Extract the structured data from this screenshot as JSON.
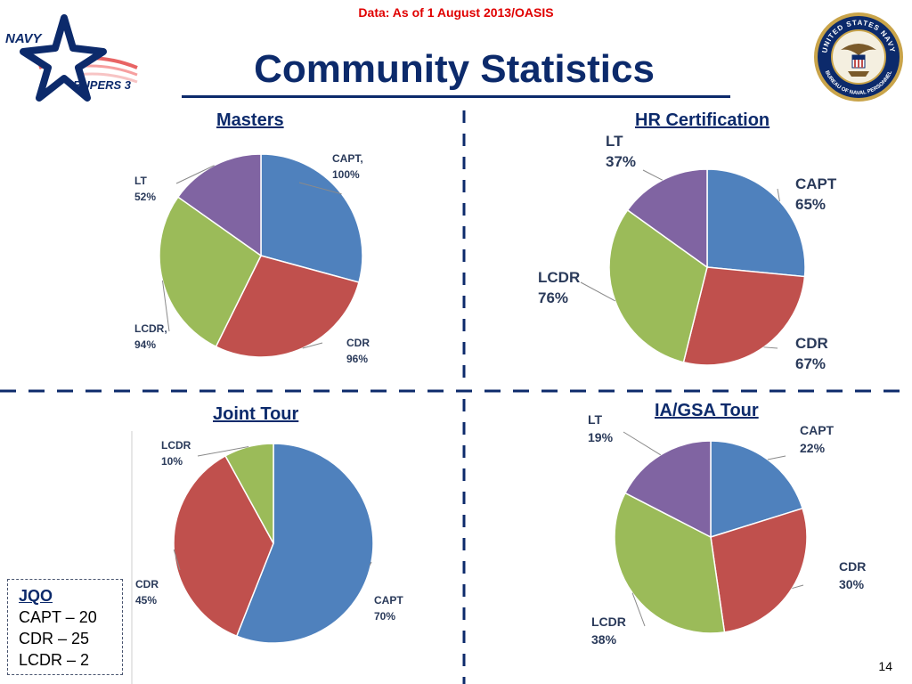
{
  "header": {
    "data_note": "Data: As of 1 August 2013/OASIS",
    "title": "Community Statistics",
    "logo_navy": "NAVY",
    "logo_bupers": "BUPERS 3",
    "seal_outer_text": "UNITED STATES NAVY",
    "seal_inner_text": "BUREAU OF NAVAL PERSONNEL"
  },
  "colors": {
    "blue": "#4f81bd",
    "red": "#c0504d",
    "green": "#9bbb59",
    "purple": "#8064a2",
    "title_navy": "#0c2a6b",
    "note_red": "#e00000"
  },
  "chart_data": [
    {
      "type": "pie",
      "title": "Masters",
      "slices": [
        {
          "label": "CAPT, 100%",
          "value": 100,
          "color": "#4f81bd"
        },
        {
          "label": "CDR 96%",
          "value": 96,
          "color": "#c0504d"
        },
        {
          "label": "LCDR, 94%",
          "value": 94,
          "color": "#9bbb59"
        },
        {
          "label": "LT 52%",
          "value": 52,
          "color": "#8064a2"
        }
      ]
    },
    {
      "type": "pie",
      "title": "HR Certification",
      "slices": [
        {
          "label": "CAPT 65%",
          "value": 65,
          "color": "#4f81bd"
        },
        {
          "label": "CDR 67%",
          "value": 67,
          "color": "#c0504d"
        },
        {
          "label": "LCDR 76%",
          "value": 76,
          "color": "#9bbb59"
        },
        {
          "label": "LT 37%",
          "value": 37,
          "color": "#8064a2"
        }
      ]
    },
    {
      "type": "pie",
      "title": "Joint Tour",
      "slices": [
        {
          "label": "CAPT 70%",
          "value": 70,
          "color": "#4f81bd"
        },
        {
          "label": "CDR 45%",
          "value": 45,
          "color": "#c0504d"
        },
        {
          "label": "LCDR 10%",
          "value": 10,
          "color": "#9bbb59"
        }
      ]
    },
    {
      "type": "pie",
      "title": "IA/GSA Tour",
      "slices": [
        {
          "label": "CAPT 22%",
          "value": 22,
          "color": "#4f81bd"
        },
        {
          "label": "CDR 30%",
          "value": 30,
          "color": "#c0504d"
        },
        {
          "label": "LCDR 38%",
          "value": 38,
          "color": "#9bbb59"
        },
        {
          "label": "LT 19%",
          "value": 19,
          "color": "#8064a2"
        }
      ]
    }
  ],
  "jqo": {
    "title": "JQO",
    "lines": [
      "CAPT – 20",
      "CDR – 25",
      "LCDR – 2"
    ]
  },
  "page_number": "14"
}
